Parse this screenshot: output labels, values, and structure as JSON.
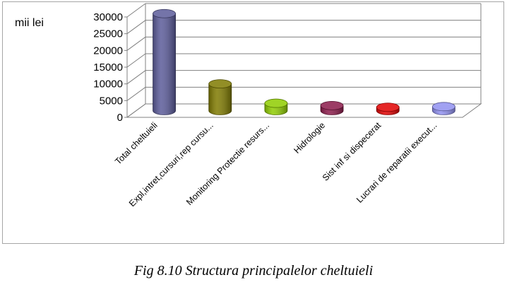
{
  "chart_data": {
    "type": "bar",
    "title": "",
    "ylabel": "mii lei",
    "xlabel": "",
    "ylim": [
      0,
      30000
    ],
    "yticks": [
      0,
      5000,
      10000,
      15000,
      20000,
      25000,
      30000
    ],
    "grid": true,
    "legend": "none",
    "categories": [
      "Total cheltuieli",
      "Expl,intret,cursuri,rep cursu...",
      "Monitoring Protectie resurs...",
      "Hidrologie",
      "Sist inf si dispecerat",
      "Lucrari de reparatii execut..."
    ],
    "values": [
      29000,
      8000,
      2200,
      1500,
      1000,
      1200
    ],
    "colors": [
      "#5b5b9a",
      "#7f7a00",
      "#8fcc00",
      "#8b1a4a",
      "#e00000",
      "#9090f0"
    ]
  },
  "caption": "Fig 8.10 Structura principalelor cheltuieli"
}
